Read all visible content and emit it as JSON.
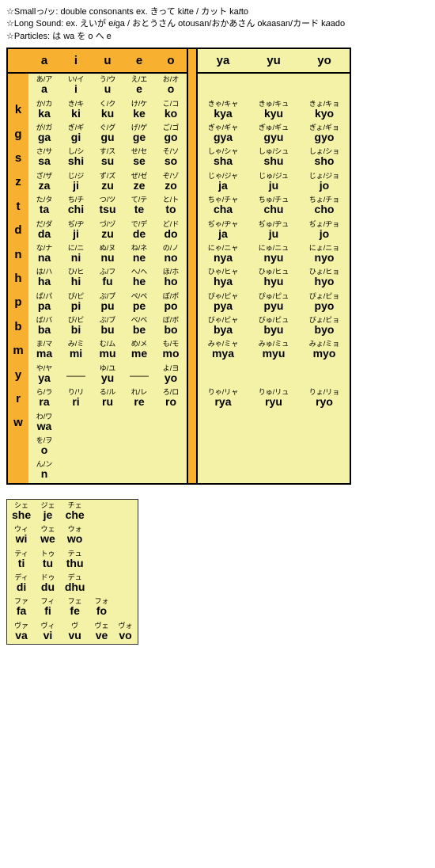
{
  "notes": {
    "line1_label": "Smallっ/ッ: double consonants  ex. きって  ki",
    "line1_italic1": "t",
    "line1_mid": "te / カット  ka",
    "line1_italic2": "t",
    "line1_end": "to",
    "line2_label": "Long Sound: ex. えいが  e",
    "line2_i1": "i",
    "line2_2": "ga / おとうさん ot",
    "line2_i2": "o",
    "line2_3": "usan/おかあさん ok",
    "line2_i3": "a",
    "line2_4": "asan/カード k",
    "line2_i4": "a",
    "line2_5": "ado",
    "line3_label": "Particles:    は wa      を o     へ e"
  },
  "headers": {
    "vowels": [
      "a",
      "i",
      "u",
      "e",
      "o"
    ],
    "yoon": [
      "ya",
      "yu",
      "yo"
    ]
  },
  "colors": {
    "header_bg": "#f7b030",
    "cell_bg": "#f3f2a6",
    "border": "#000000"
  },
  "rows": [
    {
      "key": "",
      "cells": [
        {
          "k": "あ/ア",
          "r": "a"
        },
        {
          "k": "い/イ",
          "r": "i"
        },
        {
          "k": "う/ウ",
          "r": "u"
        },
        {
          "k": "え/エ",
          "r": "e"
        },
        {
          "k": "お/オ",
          "r": "o"
        }
      ],
      "yoon": [
        null,
        null,
        null
      ]
    },
    {
      "key": "k",
      "cells": [
        {
          "k": "か/カ",
          "r": "ka"
        },
        {
          "k": "き/キ",
          "r": "ki"
        },
        {
          "k": "く/ク",
          "r": "ku"
        },
        {
          "k": "け/ケ",
          "r": "ke"
        },
        {
          "k": "こ/コ",
          "r": "ko"
        }
      ],
      "yoon": [
        {
          "k": "きゃ/キャ",
          "r": "kya"
        },
        {
          "k": "きゅ/キュ",
          "r": "kyu"
        },
        {
          "k": "きょ/キョ",
          "r": "kyo"
        }
      ]
    },
    {
      "key": "g",
      "cells": [
        {
          "k": "が/ガ",
          "r": "ga"
        },
        {
          "k": "ぎ/ギ",
          "r": "gi"
        },
        {
          "k": "ぐ/グ",
          "r": "gu"
        },
        {
          "k": "げ/ゲ",
          "r": "ge"
        },
        {
          "k": "ご/ゴ",
          "r": "go"
        }
      ],
      "yoon": [
        {
          "k": "ぎゃ/ギャ",
          "r": "gya"
        },
        {
          "k": "ぎゅ/ギュ",
          "r": "gyu"
        },
        {
          "k": "ぎょ/ギョ",
          "r": "gyo"
        }
      ]
    },
    {
      "key": "s",
      "cells": [
        {
          "k": "さ/サ",
          "r": "sa"
        },
        {
          "k": "し/シ",
          "r": "shi"
        },
        {
          "k": "す/ス",
          "r": "su"
        },
        {
          "k": "せ/セ",
          "r": "se"
        },
        {
          "k": "そ/ソ",
          "r": "so"
        }
      ],
      "yoon": [
        {
          "k": "しゃ/シャ",
          "r": "sha"
        },
        {
          "k": "しゅ/シュ",
          "r": "shu"
        },
        {
          "k": "しょ/ショ",
          "r": "sho"
        }
      ]
    },
    {
      "key": "z",
      "cells": [
        {
          "k": "ざ/ザ",
          "r": "za"
        },
        {
          "k": "じ/ジ",
          "r": "ji"
        },
        {
          "k": "ず/ズ",
          "r": "zu"
        },
        {
          "k": "ぜ/ゼ",
          "r": "ze"
        },
        {
          "k": "ぞ/ゾ",
          "r": "zo"
        }
      ],
      "yoon": [
        {
          "k": "じゃ/ジャ",
          "r": "ja"
        },
        {
          "k": "じゅ/ジュ",
          "r": "ju"
        },
        {
          "k": "じょ/ジョ",
          "r": "jo"
        }
      ]
    },
    {
      "key": "t",
      "cells": [
        {
          "k": "た/タ",
          "r": "ta"
        },
        {
          "k": "ち/チ",
          "r": "chi"
        },
        {
          "k": "つ/ツ",
          "r": "tsu"
        },
        {
          "k": "て/テ",
          "r": "te"
        },
        {
          "k": "と/ト",
          "r": "to"
        }
      ],
      "yoon": [
        {
          "k": "ちゃ/チャ",
          "r": "cha"
        },
        {
          "k": "ちゅ/チュ",
          "r": "chu"
        },
        {
          "k": "ちょ/チョ",
          "r": "cho"
        }
      ]
    },
    {
      "key": "d",
      "cells": [
        {
          "k": "だ/ダ",
          "r": "da"
        },
        {
          "k": "ぢ/ヂ",
          "r": "ji"
        },
        {
          "k": "づ/ヅ",
          "r": "zu"
        },
        {
          "k": "で/デ",
          "r": "de"
        },
        {
          "k": "ど/ド",
          "r": "do"
        }
      ],
      "yoon": [
        {
          "k": "ぢゃ/ヂャ",
          "r": "ja"
        },
        {
          "k": "ぢゅ/ヂュ",
          "r": "ju"
        },
        {
          "k": "ぢょ/ヂョ",
          "r": "jo"
        }
      ]
    },
    {
      "key": "n",
      "cells": [
        {
          "k": "な/ナ",
          "r": "na"
        },
        {
          "k": "に/ニ",
          "r": "ni"
        },
        {
          "k": "ぬ/ヌ",
          "r": "nu"
        },
        {
          "k": "ね/ネ",
          "r": "ne"
        },
        {
          "k": "の/ノ",
          "r": "no"
        }
      ],
      "yoon": [
        {
          "k": "にゃ/ニャ",
          "r": "nya"
        },
        {
          "k": "にゅ/ニュ",
          "r": "nyu"
        },
        {
          "k": "にょ/ニョ",
          "r": "nyo"
        }
      ]
    },
    {
      "key": "h",
      "cells": [
        {
          "k": "は/ハ",
          "r": "ha"
        },
        {
          "k": "ひ/ヒ",
          "r": "hi"
        },
        {
          "k": "ふ/フ",
          "r": "fu"
        },
        {
          "k": "へ/ヘ",
          "r": "he"
        },
        {
          "k": "ほ/ホ",
          "r": "ho"
        }
      ],
      "yoon": [
        {
          "k": "ひゃ/ヒャ",
          "r": "hya"
        },
        {
          "k": "ひゅ/ヒュ",
          "r": "hyu"
        },
        {
          "k": "ひょ/ヒョ",
          "r": "hyo"
        }
      ]
    },
    {
      "key": "p",
      "cells": [
        {
          "k": "ぱ/パ",
          "r": "pa"
        },
        {
          "k": "ぴ/ピ",
          "r": "pi"
        },
        {
          "k": "ぷ/プ",
          "r": "pu"
        },
        {
          "k": "ぺ/ペ",
          "r": "pe"
        },
        {
          "k": "ぽ/ポ",
          "r": "po"
        }
      ],
      "yoon": [
        {
          "k": "ぴゃ/ピャ",
          "r": "pya"
        },
        {
          "k": "ぴゅ/ピュ",
          "r": "pyu"
        },
        {
          "k": "ぴょ/ピョ",
          "r": "pyo"
        }
      ]
    },
    {
      "key": "b",
      "cells": [
        {
          "k": "ば/バ",
          "r": "ba"
        },
        {
          "k": "び/ビ",
          "r": "bi"
        },
        {
          "k": "ぶ/ブ",
          "r": "bu"
        },
        {
          "k": "べ/ベ",
          "r": "be"
        },
        {
          "k": "ぼ/ボ",
          "r": "bo"
        }
      ],
      "yoon": [
        {
          "k": "びゃ/ビャ",
          "r": "bya"
        },
        {
          "k": "びゅ/ビュ",
          "r": "byu"
        },
        {
          "k": "びょ/ビョ",
          "r": "byo"
        }
      ]
    },
    {
      "key": "m",
      "cells": [
        {
          "k": "ま/マ",
          "r": "ma"
        },
        {
          "k": "み/ミ",
          "r": "mi"
        },
        {
          "k": "む/ム",
          "r": "mu"
        },
        {
          "k": "め/メ",
          "r": "me"
        },
        {
          "k": "も/モ",
          "r": "mo"
        }
      ],
      "yoon": [
        {
          "k": "みゃ/ミャ",
          "r": "mya"
        },
        {
          "k": "みゅ/ミュ",
          "r": "myu"
        },
        {
          "k": "みょ/ミョ",
          "r": "myo"
        }
      ]
    },
    {
      "key": "y",
      "cells": [
        {
          "k": "や/ヤ",
          "r": "ya"
        },
        {
          "dash": true
        },
        {
          "k": "ゆ/ユ",
          "r": "yu"
        },
        {
          "dash": true
        },
        {
          "k": "よ/ヨ",
          "r": "yo"
        }
      ],
      "yoon": [
        null,
        null,
        null
      ]
    },
    {
      "key": "r",
      "cells": [
        {
          "k": "ら/ラ",
          "r": "ra"
        },
        {
          "k": "り/リ",
          "r": "ri"
        },
        {
          "k": "る/ル",
          "r": "ru"
        },
        {
          "k": "れ/レ",
          "r": "re"
        },
        {
          "k": "ろ/ロ",
          "r": "ro"
        }
      ],
      "yoon": [
        {
          "k": "りゃ/リャ",
          "r": "rya"
        },
        {
          "k": "りゅ/リュ",
          "r": "ryu"
        },
        {
          "k": "りょ/リョ",
          "r": "ryo"
        }
      ]
    },
    {
      "key": "w",
      "cells": [
        {
          "k": "わ/ワ",
          "r": "wa"
        },
        null,
        null,
        null,
        null
      ],
      "yoon": [
        null,
        null,
        null
      ]
    },
    {
      "key": "",
      "cells": [
        {
          "k": "を/ヲ",
          "r": "o"
        },
        null,
        null,
        null,
        null
      ],
      "yoon": [
        null,
        null,
        null
      ]
    },
    {
      "key": "",
      "cells": [
        {
          "k": "ん/ン",
          "r": "n"
        },
        null,
        null,
        null,
        null
      ],
      "yoon": [
        null,
        null,
        null
      ]
    }
  ],
  "ext_rows": [
    [
      {
        "k": "シェ",
        "r": "she"
      },
      {
        "k": "ジェ",
        "r": "je"
      },
      {
        "k": "チェ",
        "r": "che"
      },
      null,
      null
    ],
    [
      {
        "k": "ウィ",
        "r": "wi"
      },
      {
        "k": "ウェ",
        "r": "we"
      },
      {
        "k": "ウォ",
        "r": "wo"
      },
      null,
      null
    ],
    [
      {
        "k": "ティ",
        "r": "ti"
      },
      {
        "k": "トゥ",
        "r": "tu"
      },
      {
        "k": "テュ",
        "r": "thu"
      },
      null,
      null
    ],
    [
      {
        "k": "ディ",
        "r": "di"
      },
      {
        "k": "ドゥ",
        "r": "du"
      },
      {
        "k": "デュ",
        "r": "dhu"
      },
      null,
      null
    ],
    [
      {
        "k": "ファ",
        "r": "fa"
      },
      {
        "k": "フィ",
        "r": "fi"
      },
      {
        "k": "フェ",
        "r": "fe"
      },
      {
        "k": "フォ",
        "r": "fo"
      },
      null
    ],
    [
      {
        "k": "ヴァ",
        "r": "va"
      },
      {
        "k": "ヴィ",
        "r": "vi"
      },
      {
        "k": "ヴ",
        "r": "vu"
      },
      {
        "k": "ヴェ",
        "r": "ve"
      },
      {
        "k": "ヴォ",
        "r": "vo"
      }
    ]
  ]
}
